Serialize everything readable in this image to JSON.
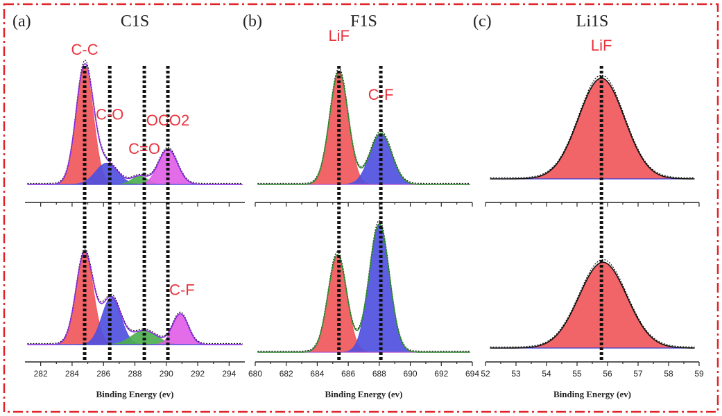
{
  "chart_data": [
    {
      "type": "area",
      "panel": "(a)",
      "title": "C1S",
      "xlabel": "Binding Energy (ev)",
      "xlim": [
        281,
        295
      ],
      "ticks": [
        282,
        284,
        286,
        288,
        290,
        292,
        294
      ],
      "markers": [
        284.8,
        286.4,
        288.6,
        290.1
      ],
      "colors": {
        "envelope": "#8a2be2",
        "baseline": "#3b3bd4"
      },
      "labels": [
        {
          "text": "C-C",
          "x": 284.8,
          "y": 1.1,
          "sub": "top"
        },
        {
          "text": "C-O",
          "x": 286.4,
          "y": 0.55,
          "sub": "top"
        },
        {
          "text": "C=O",
          "x": 288.6,
          "y": 0.26,
          "sub": "top"
        },
        {
          "text": "OCO2",
          "x": 290.1,
          "y": 0.5,
          "sub": "top"
        },
        {
          "text": "C-F",
          "x": 291.0,
          "y": 0.42,
          "sub": "bottom"
        }
      ],
      "top": {
        "baseline": 0.0,
        "components": [
          {
            "name": "C-C",
            "center": 284.8,
            "amplitude": 1.0,
            "sigma": 0.55,
            "color": "#f0575a"
          },
          {
            "name": "C-O",
            "center": 286.2,
            "amplitude": 0.18,
            "sigma": 0.7,
            "color": "#5050e0"
          },
          {
            "name": "C=O",
            "center": 288.3,
            "amplitude": 0.07,
            "sigma": 0.5,
            "color": "#4caf50"
          },
          {
            "name": "OCO2",
            "center": 290.1,
            "amplitude": 0.3,
            "sigma": 0.6,
            "color": "#e15fe6"
          }
        ]
      },
      "bottom": {
        "baseline": 0.0,
        "components": [
          {
            "name": "C-C",
            "center": 284.8,
            "amplitude": 0.78,
            "sigma": 0.55,
            "color": "#f0575a"
          },
          {
            "name": "C-O",
            "center": 286.5,
            "amplitude": 0.4,
            "sigma": 0.6,
            "color": "#5050e0"
          },
          {
            "name": "C=O",
            "center": 288.6,
            "amplitude": 0.12,
            "sigma": 0.8,
            "color": "#4caf50"
          },
          {
            "name": "C-F",
            "center": 290.9,
            "amplitude": 0.26,
            "sigma": 0.5,
            "color": "#e15fe6"
          }
        ]
      }
    },
    {
      "type": "area",
      "panel": "(b)",
      "title": "F1S",
      "xlabel": "Binding Energy (ev)",
      "xlim": [
        680,
        694
      ],
      "ticks": [
        680,
        682,
        684,
        686,
        688,
        690,
        692,
        694
      ],
      "markers": [
        685.4,
        688.1
      ],
      "colors": {
        "envelope": "#2e8b2e",
        "baseline": "#b04fc7"
      },
      "labels": [
        {
          "text": "LiF",
          "x": 685.4,
          "y": 1.12,
          "sub": "top"
        },
        {
          "text": "C-F",
          "x": 688.1,
          "y": 0.66,
          "sub": "top"
        }
      ],
      "top": {
        "baseline": 0.0,
        "components": [
          {
            "name": "LiF",
            "center": 685.4,
            "amplitude": 0.88,
            "sigma": 0.6,
            "color": "#f0575a"
          },
          {
            "name": "C-F",
            "center": 688.1,
            "amplitude": 0.4,
            "sigma": 0.7,
            "color": "#5050e0"
          }
        ]
      },
      "bottom": {
        "baseline": 0.0,
        "components": [
          {
            "name": "LiF",
            "center": 685.3,
            "amplitude": 0.76,
            "sigma": 0.6,
            "color": "#f0575a"
          },
          {
            "name": "C-F",
            "center": 688.0,
            "amplitude": 1.0,
            "sigma": 0.65,
            "color": "#5050e0"
          }
        ]
      }
    },
    {
      "type": "area",
      "panel": "(c)",
      "title": "Li1S",
      "xlabel": "Binding Energy (ev)",
      "xlim": [
        52,
        59
      ],
      "ticks": [
        52,
        53,
        54,
        55,
        56,
        57,
        58,
        59
      ],
      "markers": [
        55.8
      ],
      "colors": {
        "envelope": "#111111",
        "baseline": "#3b3bd4"
      },
      "labels": [
        {
          "text": "LiF",
          "x": 55.8,
          "y": 1.12,
          "sub": "top"
        }
      ],
      "top": {
        "baseline": 0.0,
        "components": [
          {
            "name": "LiF",
            "center": 55.8,
            "amplitude": 0.88,
            "sigma": 0.75,
            "color": "#f0575a"
          }
        ]
      },
      "bottom": {
        "baseline": 0.0,
        "components": [
          {
            "name": "LiF",
            "center": 55.85,
            "amplitude": 0.75,
            "sigma": 0.78,
            "color": "#f0575a"
          }
        ]
      }
    }
  ]
}
